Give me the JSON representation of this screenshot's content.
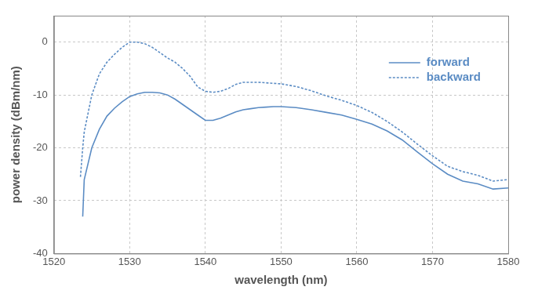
{
  "chart_data": {
    "type": "line",
    "x_label": "wavelength (nm)",
    "y_label": "power density (dBm/nm)",
    "x": [
      1523.5,
      1523.8,
      1524,
      1525,
      1526,
      1527,
      1528,
      1529,
      1530,
      1531,
      1532,
      1533,
      1534,
      1535,
      1536,
      1537,
      1538,
      1539,
      1540,
      1541,
      1542,
      1543,
      1544,
      1545,
      1546,
      1547,
      1548,
      1549,
      1550,
      1552,
      1554,
      1556,
      1558,
      1560,
      1562,
      1564,
      1566,
      1568,
      1570,
      1572,
      1574,
      1576,
      1578,
      1580
    ],
    "series": [
      {
        "name": "forward",
        "color": "#5b8cc4",
        "line_style": "solid",
        "marker": "none",
        "values": [
          null,
          -33,
          -26,
          -20,
          -16.5,
          -14,
          -12.5,
          -11.3,
          -10.3,
          -9.8,
          -9.5,
          -9.5,
          -9.6,
          -10,
          -10.8,
          -11.8,
          -12.8,
          -13.8,
          -14.8,
          -14.8,
          -14.4,
          -13.8,
          -13.2,
          -12.8,
          -12.6,
          -12.4,
          -12.3,
          -12.2,
          -12.2,
          -12.4,
          -12.8,
          -13.3,
          -13.8,
          -14.6,
          -15.5,
          -16.8,
          -18.5,
          -20.8,
          -23,
          -25,
          -26.3,
          -26.8,
          -27.8,
          -27.6
        ]
      },
      {
        "name": "backward",
        "color": "#5b8cc4",
        "line_style": "dashed",
        "marker": "none",
        "values": [
          -25.5,
          -20,
          -17,
          -10,
          -6,
          -3.8,
          -2.3,
          -1,
          0,
          0,
          -0.3,
          -1,
          -2,
          -3,
          -3.8,
          -5,
          -6.5,
          -8.5,
          -9.3,
          -9.5,
          -9.3,
          -8.8,
          -8,
          -7.6,
          -7.6,
          -7.6,
          -7.7,
          -7.8,
          -7.9,
          -8.4,
          -9.2,
          -10.2,
          -11,
          -12,
          -13.3,
          -15,
          -17,
          -19.3,
          -21.5,
          -23.5,
          -24.5,
          -25.2,
          -26.3,
          -26
        ]
      }
    ],
    "xlim": [
      1520,
      1580
    ],
    "xticks": [
      1520,
      1530,
      1540,
      1550,
      1560,
      1570,
      1580
    ],
    "ylim": [
      -40,
      5
    ],
    "yticks": [
      -40,
      -30,
      -20,
      -10,
      0
    ],
    "grid": true,
    "legend": "upper right"
  }
}
